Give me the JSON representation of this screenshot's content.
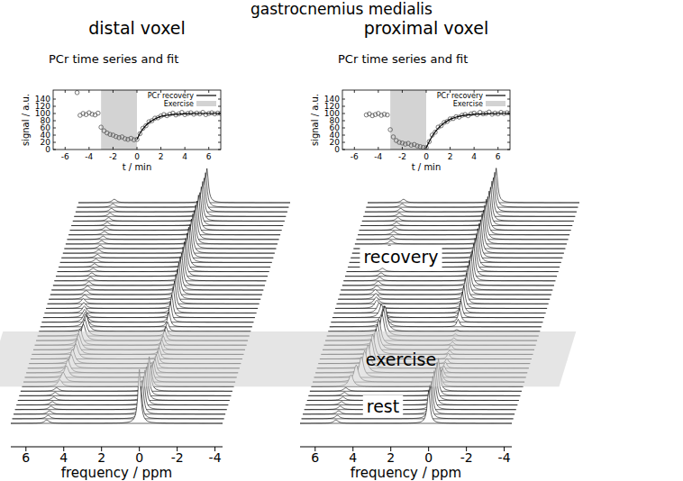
{
  "title": "gastrocnemius medialis",
  "annotations": [
    "recovery",
    "exercise",
    "rest"
  ],
  "chart_data": [
    {
      "type": "scatter",
      "title": "distal voxel",
      "subtitle": "PCr time series and fit",
      "x_label": "t / min",
      "y_label": "signal / a.u.",
      "xlim": [
        -7,
        7
      ],
      "xticks": [
        -6,
        -4,
        -2,
        0,
        2,
        4,
        6
      ],
      "ylim": [
        0,
        165
      ],
      "yticks": [
        0,
        20,
        40,
        60,
        80,
        100,
        120,
        140
      ],
      "legend": "top-right",
      "series": [
        {
          "name": "PCr recovery",
          "type": "line",
          "color": "#000000",
          "x": [
            0,
            0.25,
            0.5,
            0.75,
            1,
            1.5,
            2,
            2.5,
            3,
            4,
            5,
            6,
            7
          ],
          "values": [
            28,
            45,
            57,
            67,
            75,
            85,
            92,
            95,
            97,
            99,
            100,
            100,
            100
          ]
        },
        {
          "name": "Exercise",
          "type": "span",
          "color": "#d3d3d3",
          "x": [
            -3,
            0
          ]
        },
        {
          "type": "scatter",
          "marker": "circle",
          "color": "#555555",
          "x": [
            -5,
            -4.75,
            -4.5,
            -4.25,
            -4,
            -3.75,
            -3.5,
            -3.25,
            -3,
            -2.75,
            -2.5,
            -2.25,
            -2,
            -1.75,
            -1.5,
            -1.25,
            -1,
            -0.75,
            -0.5,
            -0.25,
            0,
            0.25,
            0.5,
            0.75,
            1,
            1.25,
            1.5,
            1.75,
            2,
            2.25,
            2.5,
            2.75,
            3,
            3.25,
            3.5,
            3.75,
            4,
            4.25,
            4.5,
            4.75,
            5,
            5.25,
            5.5,
            5.75,
            6,
            6.25,
            6.5,
            6.75,
            7
          ],
          "values": [
            158,
            95,
            100,
            97,
            102,
            98,
            96,
            101,
            62,
            52,
            46,
            42,
            40,
            36,
            33,
            35,
            30,
            28,
            31,
            27,
            28,
            44,
            59,
            66,
            77,
            80,
            87,
            88,
            93,
            97,
            94,
            98,
            101,
            96,
            99,
            103,
            97,
            100,
            102,
            98,
            101,
            99,
            103,
            97,
            100,
            102,
            99,
            101,
            100
          ]
        }
      ],
      "spectra": {
        "x_label": "frequency / ppm",
        "xlim": [
          6.8,
          -4.4
        ],
        "xticks": [
          6,
          4,
          2,
          0,
          -2,
          -4
        ],
        "pi_values": [
          10,
          10,
          10,
          10,
          10,
          10,
          10,
          10,
          20,
          28,
          34,
          38,
          40,
          42,
          44,
          45,
          46,
          47,
          48,
          48,
          46,
          38,
          30,
          24,
          20,
          17,
          15,
          13,
          12,
          12,
          11,
          11,
          10,
          10,
          10,
          10,
          10,
          10,
          10,
          10,
          10,
          10,
          10,
          10,
          10,
          10,
          10,
          10,
          10
        ],
        "pi_ppm": [
          4.9,
          4.9,
          4.9,
          4.9,
          4.9,
          4.9,
          4.9,
          4.9,
          4.8,
          4.7,
          4.6,
          4.6,
          4.5,
          4.5,
          4.4,
          4.4,
          4.4,
          4.4,
          4.3,
          4.3,
          4.3,
          4.4,
          4.5,
          4.6,
          4.7,
          4.8,
          4.9,
          4.9,
          4.9,
          4.9,
          4.9,
          4.9,
          4.9,
          4.9,
          4.9,
          4.9,
          4.9,
          4.9,
          4.9,
          4.9,
          4.9,
          4.9,
          4.9,
          4.9,
          4.9,
          4.9,
          4.9,
          4.9,
          4.9
        ]
      }
    },
    {
      "type": "scatter",
      "title": "proximal voxel",
      "subtitle": "PCr time series and fit",
      "x_label": "t / min",
      "y_label": "signal / a.u.",
      "xlim": [
        -7,
        7
      ],
      "xticks": [
        -6,
        -4,
        -2,
        0,
        2,
        4,
        6
      ],
      "ylim": [
        0,
        165
      ],
      "yticks": [
        0,
        20,
        40,
        60,
        80,
        100,
        120,
        140
      ],
      "legend": "top-right",
      "series": [
        {
          "name": "PCr recovery",
          "type": "line",
          "color": "#000000",
          "x": [
            0,
            0.25,
            0.5,
            0.75,
            1,
            1.5,
            2,
            2.5,
            3,
            4,
            5,
            6,
            7
          ],
          "values": [
            5,
            22,
            37,
            49,
            59,
            74,
            84,
            90,
            94,
            98,
            99,
            100,
            100
          ]
        },
        {
          "name": "Exercise",
          "type": "span",
          "color": "#d3d3d3",
          "x": [
            -3,
            0
          ]
        },
        {
          "type": "scatter",
          "marker": "circle",
          "color": "#555555",
          "x": [
            -5,
            -4.75,
            -4.5,
            -4.25,
            -4,
            -3.75,
            -3.5,
            -3.25,
            -3,
            -2.75,
            -2.5,
            -2.25,
            -2,
            -1.75,
            -1.5,
            -1.25,
            -1,
            -0.75,
            -0.5,
            -0.25,
            0,
            0.25,
            0.5,
            0.75,
            1,
            1.25,
            1.5,
            1.75,
            2,
            2.25,
            2.5,
            2.75,
            3,
            3.25,
            3.5,
            3.75,
            4,
            4.25,
            4.5,
            4.75,
            5,
            5.25,
            5.5,
            5.75,
            6,
            6.25,
            6.5,
            6.75,
            7
          ],
          "values": [
            96,
            99,
            94,
            97,
            100,
            95,
            98,
            96,
            55,
            35,
            25,
            20,
            18,
            15,
            17,
            12,
            14,
            10,
            8,
            6,
            5,
            22,
            40,
            48,
            62,
            66,
            75,
            78,
            85,
            86,
            91,
            90,
            95,
            97,
            94,
            99,
            101,
            97,
            103,
            99,
            100,
            104,
            98,
            101,
            99,
            103,
            100,
            102,
            101
          ]
        }
      ],
      "spectra": {
        "x_label": "frequency / ppm",
        "xlim": [
          6.8,
          -4.4
        ],
        "xticks": [
          6,
          4,
          2,
          0,
          -2,
          -4
        ],
        "pi_values": [
          10,
          10,
          10,
          10,
          10,
          10,
          10,
          10,
          35,
          50,
          60,
          65,
          68,
          70,
          72,
          73,
          74,
          75,
          76,
          77,
          74,
          60,
          48,
          38,
          30,
          24,
          20,
          17,
          15,
          13,
          12,
          11,
          10,
          10,
          10,
          10,
          10,
          10,
          10,
          10,
          10,
          10,
          10,
          10,
          10,
          10,
          10,
          10,
          10
        ],
        "pi_ppm": [
          4.9,
          4.9,
          4.9,
          4.9,
          4.9,
          4.9,
          4.9,
          4.9,
          4.7,
          4.5,
          4.3,
          4.2,
          4.1,
          4.0,
          4.0,
          3.9,
          3.9,
          3.9,
          3.8,
          3.8,
          3.8,
          3.9,
          4.0,
          4.2,
          4.4,
          4.6,
          4.7,
          4.8,
          4.9,
          4.9,
          4.9,
          4.9,
          4.9,
          4.9,
          4.9,
          4.9,
          4.9,
          4.9,
          4.9,
          4.9,
          4.9,
          4.9,
          4.9,
          4.9,
          4.9,
          4.9,
          4.9,
          4.9,
          4.9
        ]
      }
    }
  ]
}
